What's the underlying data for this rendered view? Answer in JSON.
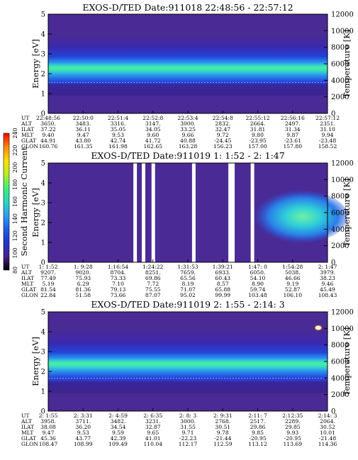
{
  "colorbar": {
    "label": "Second Harmonic Current",
    "ticks": [
      "80",
      "100",
      "120",
      "140",
      "160",
      "180",
      "200",
      "220",
      "240"
    ],
    "min": 80,
    "max": 240,
    "stops": [
      "#000000",
      "#4b2090",
      "#2233cc",
      "#1f5fe6",
      "#2aa0f0",
      "#27d9c0",
      "#3cf07a",
      "#b6f020",
      "#ffe000",
      "#ff8800",
      "#ff0000"
    ]
  },
  "chart_data": [
    {
      "type": "heatmap",
      "title": "EXOS-D/TED   Date:911018  22:48:56 - 22:57:12",
      "ylabel": "Energy [eV]",
      "ylabel_right": "Temperature [K]",
      "ylim": [
        0,
        5
      ],
      "ylim_right": [
        0,
        12000
      ],
      "yticks": [
        "0",
        "1",
        "2",
        "3",
        "4",
        "5"
      ],
      "yticks_right": [
        "0",
        "2000",
        "4000",
        "6000",
        "8000",
        "10000",
        "12000"
      ],
      "band_center_ev": 2.35,
      "dashed_line_ev": 1.55,
      "gaps": [],
      "hot_spot": null,
      "table": {
        "row_labels": [
          "UT",
          "ALT",
          "ILAT",
          "MLT",
          "GLAT",
          "GLON"
        ],
        "columns": [
          [
            "22:48:56",
            "3650.",
            "37.22",
            "9.40",
            "44.91",
            "160.76"
          ],
          [
            "22:50:0",
            "3483.",
            "36.11",
            "9.47",
            "43.80",
            "161.35"
          ],
          [
            "22:51:4",
            "3316.",
            "35.05",
            "9.53",
            "42.74",
            "161.98"
          ],
          [
            "22:52:8",
            "3147.",
            "34.05",
            "9.60",
            "41.72",
            "162.65"
          ],
          [
            "22:53:4",
            "3000.",
            "33.25",
            "9.66",
            "40.88",
            "163.28"
          ],
          [
            "22:54:8",
            "2832.",
            "32.47",
            "9.72",
            "-24.45",
            "156.23"
          ],
          [
            "22:55:12",
            "2664.",
            "31.81",
            "9.80",
            "-23.95",
            "157.00"
          ],
          [
            "22:56:16",
            "2497.",
            "31.34",
            "9.87",
            "-23.61",
            "157.80"
          ],
          [
            "22:57:12",
            "2351.",
            "31.10",
            "9.94",
            "-23.48",
            "158.52"
          ]
        ]
      }
    },
    {
      "type": "heatmap",
      "title": "EXOS-D/TED   Date:911019  1: 1:52 - 2: 1:47",
      "ylabel": "Energy [eV]",
      "ylabel_right": "Temperature [K]",
      "ylim": [
        0,
        5
      ],
      "ylim_right": [
        0,
        12000
      ],
      "yticks": [
        "0",
        "1",
        "2",
        "3",
        "4",
        "5"
      ],
      "yticks_right": [
        "0",
        "2000",
        "4000",
        "6000",
        "8000",
        "10000",
        "12000"
      ],
      "band_center_ev": null,
      "dashed_line_ev": null,
      "gaps": [
        0.31,
        0.34,
        0.375,
        0.52,
        0.65,
        0.66,
        0.73
      ],
      "hot_spot": {
        "x_frac": 0.92,
        "energy_ev": 2.3
      },
      "table": {
        "row_labels": [
          "UT",
          "ALT",
          "ILAT",
          "MLT",
          "GLAT",
          "GLON"
        ],
        "columns": [
          [
            "1: 1:52",
            "9207.",
            "77.49",
            "5.19",
            "81.54",
            "22.84"
          ],
          [
            "1: 9:28",
            "9020.",
            "75.93",
            "6.29",
            "81.36",
            "51.58"
          ],
          [
            "1:16:54",
            "8704.",
            "73.33",
            "7.10",
            "79.13",
            "73.66"
          ],
          [
            "1:24:22",
            "8251.",
            "69.86",
            "7.72",
            "75.55",
            "87.07"
          ],
          [
            "1:31:53",
            "7659.",
            "65.56",
            "8.19",
            "71.07",
            "95.02"
          ],
          [
            "1:39:21",
            "6933.",
            "60.43",
            "8.57",
            "65.88",
            "99.99"
          ],
          [
            "1:47: 0",
            "6050.",
            "54.10",
            "8.90",
            "59.74",
            "103.48"
          ],
          [
            "1:54:28",
            "5038.",
            "46.66",
            "9.19",
            "52.87",
            "106.10"
          ],
          [
            "2: 1:47",
            "3979.",
            "38.23",
            "9.46",
            "45.49",
            "108.43"
          ]
        ]
      }
    },
    {
      "type": "heatmap",
      "title": "EXOS-D/TED   Date:911019  2: 1:55 - 2:14: 3",
      "ylabel": "Energy [eV]",
      "ylabel_right": "Temperature [K]",
      "ylim": [
        0,
        5
      ],
      "ylim_right": [
        0,
        12000
      ],
      "yticks": [
        "0",
        "1",
        "2",
        "3",
        "4",
        "5"
      ],
      "yticks_right": [
        "0",
        "2000",
        "4000",
        "6000",
        "8000",
        "10000",
        "12000"
      ],
      "band_center_ev": 2.45,
      "dashed_line_ev": 1.65,
      "gaps": [],
      "hot_spot": null,
      "table": {
        "row_labels": [
          "UT",
          "ALT",
          "ILAT",
          "MLT",
          "GLAT",
          "GLON"
        ],
        "columns": [
          [
            "2: 1:55",
            "3958.",
            "38.08",
            "9.47",
            "45.36",
            "108.47"
          ],
          [
            "2: 3:31",
            "3711.",
            "36.20",
            "9.53",
            "43.77",
            "108.99"
          ],
          [
            "2: 4:59",
            "3482.",
            "34.54",
            "9.59",
            "42.39",
            "109.49"
          ],
          [
            "2: 6:35",
            "3231.",
            "32.87",
            "9.65",
            "41.01",
            "110.04"
          ],
          [
            "2: 8: 3",
            "3000.",
            "31.55",
            "9.71",
            "-22.23",
            "112.17"
          ],
          [
            "2: 9:31",
            "2768.",
            "30.51",
            "9.78",
            "-21.44",
            "112.59"
          ],
          [
            "2:11: 7",
            "2517.",
            "29.86",
            "9.85",
            "-20.95",
            "113.12"
          ],
          [
            "2:12:35",
            "2289.",
            "29.85",
            "9.93",
            "-20.95",
            "113.69"
          ],
          [
            "2:14: 3",
            "2064.",
            "30.52",
            "10.01",
            "-21.48",
            "114.36"
          ]
        ]
      }
    }
  ]
}
